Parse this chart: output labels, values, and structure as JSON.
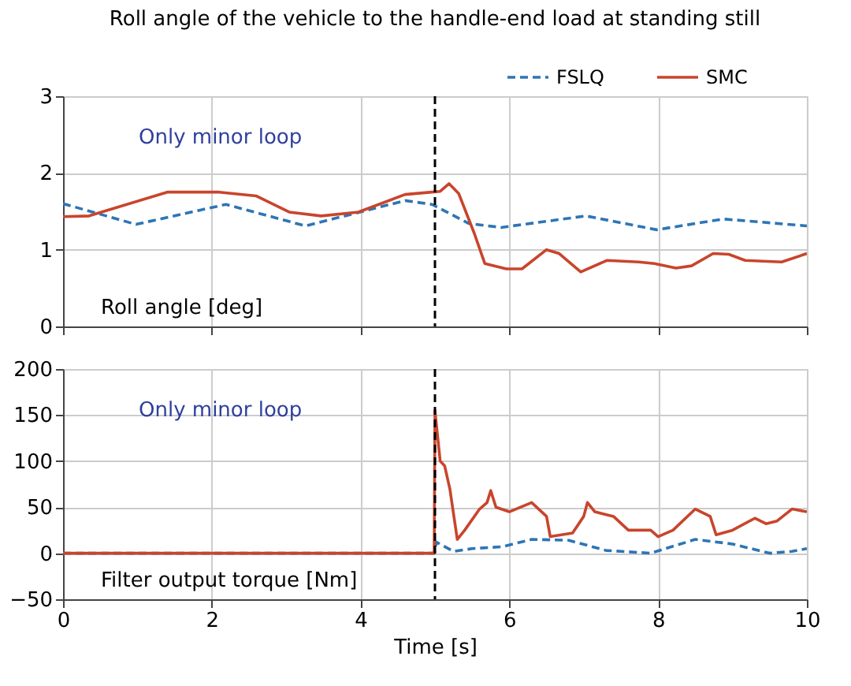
{
  "chart_data": [
    {
      "type": "line",
      "title": "Roll angle of the vehicle to the handle-end load at standing still",
      "xlim": [
        0,
        10
      ],
      "xticks": [
        0,
        2,
        4,
        6,
        8,
        10
      ],
      "ylim": [
        0,
        3
      ],
      "yticks": [
        0,
        1,
        2,
        3
      ],
      "grid": true,
      "legend": "top right",
      "tick_labels": "y",
      "annotations": [
        "Only minor loop",
        "Roll angle [deg]"
      ],
      "ref_lines": [
        {
          "axis": "x",
          "value": 5,
          "color": "#000000",
          "line_style": "dashed"
        }
      ],
      "series": [
        {
          "name": "FSLQ",
          "color": "#2e75b6",
          "line_style": "dashed",
          "x": [
            0,
            0.98,
            2.19,
            3.26,
            4.6,
            4.96,
            5.46,
            5.89,
            7.03,
            7.98,
            8.88,
            10
          ],
          "values": [
            1.6,
            1.33,
            1.59,
            1.31,
            1.64,
            1.59,
            1.34,
            1.29,
            1.44,
            1.26,
            1.4,
            1.31
          ]
        },
        {
          "name": "SMC",
          "color": "#c8452c",
          "line_style": "solid",
          "x": [
            0,
            0.35,
            1.4,
            2.1,
            2.6,
            3.04,
            3.47,
            3.97,
            4.6,
            4.96,
            5.07,
            5.19,
            5.32,
            5.53,
            5.67,
            5.96,
            6.17,
            6.5,
            6.67,
            6.96,
            7.31,
            7.74,
            7.95,
            8.24,
            8.45,
            8.74,
            8.95,
            9.17,
            9.66,
            10
          ],
          "values": [
            1.43,
            1.44,
            1.75,
            1.75,
            1.7,
            1.49,
            1.44,
            1.49,
            1.72,
            1.75,
            1.76,
            1.86,
            1.73,
            1.21,
            0.82,
            0.75,
            0.75,
            1.0,
            0.95,
            0.71,
            0.86,
            0.84,
            0.82,
            0.76,
            0.79,
            0.95,
            0.94,
            0.86,
            0.84,
            0.95
          ]
        }
      ]
    },
    {
      "type": "line",
      "xlabel": "Time [s]",
      "xlim": [
        0,
        10
      ],
      "xticks": [
        0,
        2,
        4,
        6,
        8,
        10
      ],
      "ylim": [
        -50,
        200
      ],
      "yticks": [
        -50,
        0,
        50,
        100,
        150,
        200
      ],
      "grid": true,
      "annotations": [
        "Only minor loop",
        "Filter output torque [Nm]"
      ],
      "ref_lines": [
        {
          "axis": "x",
          "value": 5,
          "color": "#000000",
          "line_style": "dashed"
        }
      ],
      "series": [
        {
          "color": "#2e75b6",
          "line_style": "dashed",
          "x": [
            0,
            4.99,
            5.02,
            5.25,
            5.5,
            5.9,
            6.3,
            6.8,
            7.3,
            7.9,
            8.5,
            9.0,
            9.5,
            9.8,
            10
          ],
          "values": [
            0,
            0,
            12,
            2,
            5,
            7,
            15,
            14,
            3,
            0,
            15,
            10,
            0,
            2,
            5
          ]
        },
        {
          "color": "#c8452c",
          "line_style": "solid",
          "x": [
            0,
            4.99,
            5.0,
            5.07,
            5.13,
            5.2,
            5.3,
            5.4,
            5.6,
            5.7,
            5.75,
            5.82,
            6.0,
            6.3,
            6.5,
            6.55,
            6.7,
            6.85,
            7.0,
            7.05,
            7.15,
            7.4,
            7.6,
            7.9,
            8.0,
            8.2,
            8.5,
            8.7,
            8.78,
            9.0,
            9.3,
            9.45,
            9.6,
            9.8,
            10
          ],
          "values": [
            0,
            0,
            155,
            100,
            95,
            70,
            15,
            25,
            48,
            55,
            68,
            50,
            45,
            55,
            40,
            18,
            20,
            22,
            40,
            55,
            45,
            40,
            25,
            25,
            18,
            25,
            48,
            40,
            20,
            25,
            38,
            32,
            35,
            48,
            45
          ]
        }
      ]
    }
  ]
}
